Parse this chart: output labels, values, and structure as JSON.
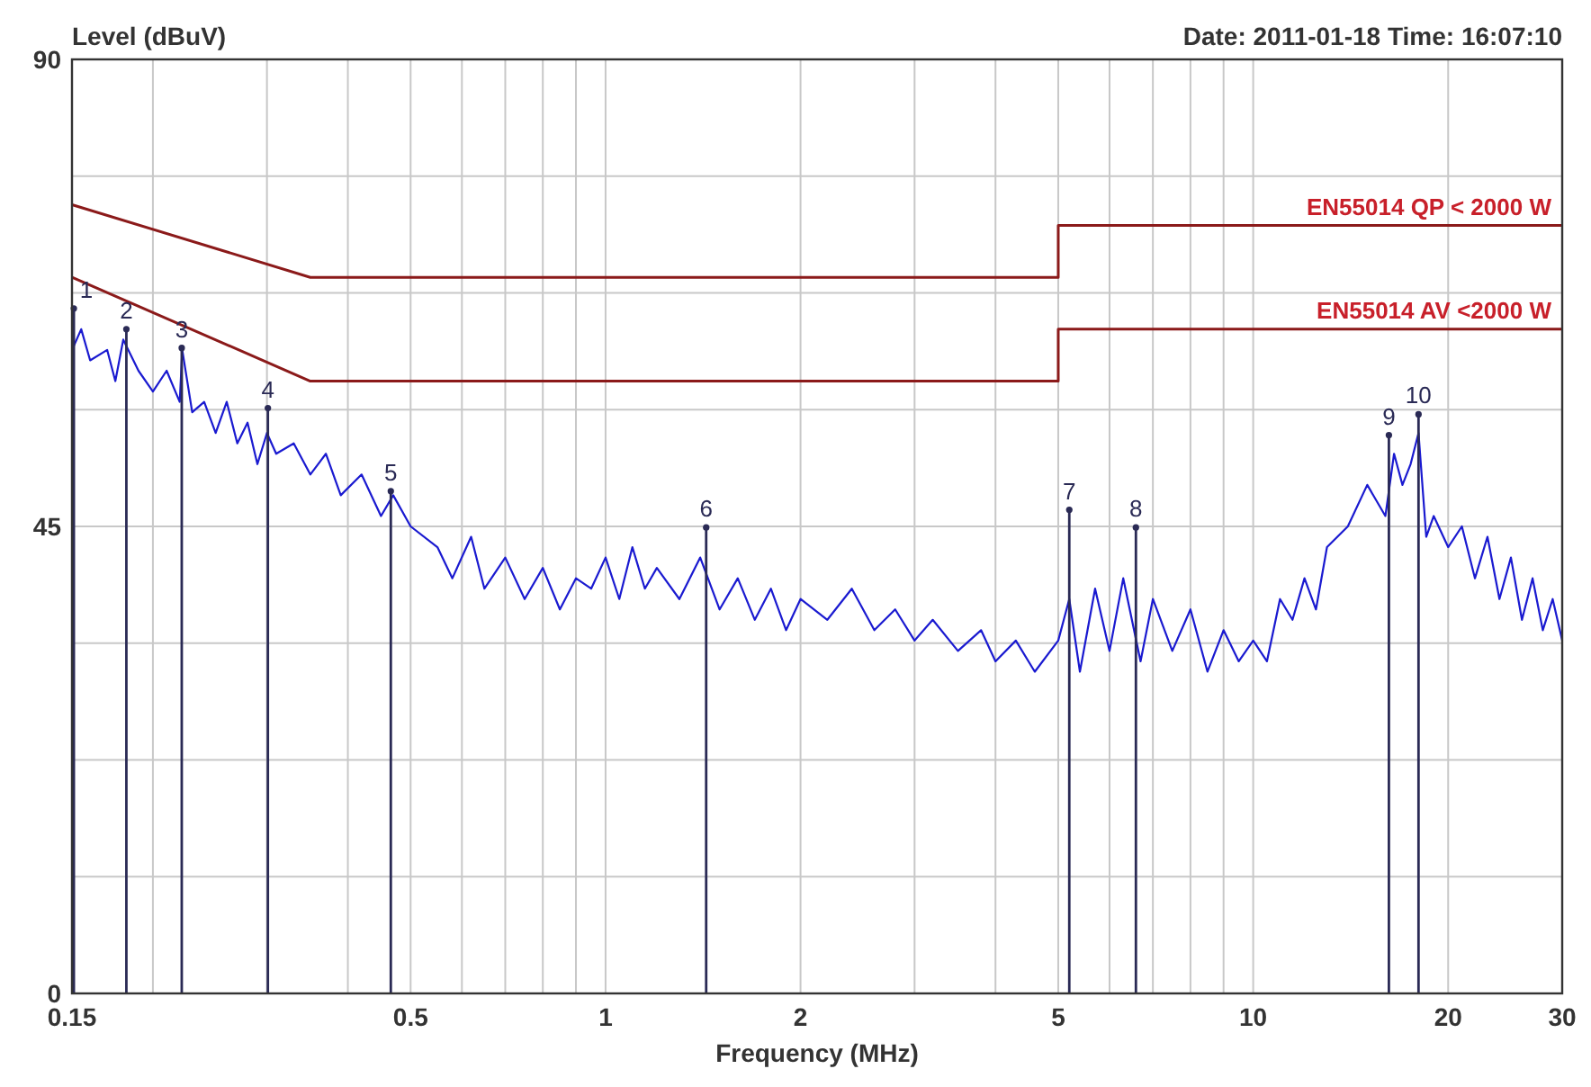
{
  "chart_data": {
    "type": "line",
    "ylabel": "Level (dBuV)",
    "xlabel": "Frequency (MHz)",
    "annotations": [
      "Date: 2011-01-18  Time: 16:07:10",
      {
        "text": "1",
        "x": 0.151,
        "y": 66
      },
      {
        "text": "2",
        "x": 0.182,
        "y": 64
      },
      {
        "text": "3",
        "x": 0.2216,
        "y": 62.2
      },
      {
        "text": "4",
        "x": 0.301,
        "y": 56.4
      },
      {
        "text": "5",
        "x": 0.466,
        "y": 48.4
      },
      {
        "text": "6",
        "x": 1.43,
        "y": 44.9
      },
      {
        "text": "7",
        "x": 5.2,
        "y": 46.6
      },
      {
        "text": "8",
        "x": 6.59,
        "y": 44.9
      },
      {
        "text": "9",
        "x": 16.2,
        "y": 53.8
      },
      {
        "text": "10",
        "x": 18.0,
        "y": 55.8
      }
    ],
    "log": "x",
    "grid": true,
    "legend": false,
    "line_style": "solid",
    "xlim": [
      0.15,
      30
    ],
    "xticks": [
      0.15,
      {
        "value": 0.2,
        "label": null
      },
      {
        "value": 0.3,
        "label": null
      },
      {
        "value": 0.4,
        "label": null
      },
      0.5,
      {
        "value": 0.6,
        "label": null
      },
      {
        "value": 0.7,
        "label": null
      },
      {
        "value": 0.8,
        "label": null
      },
      {
        "value": 0.9,
        "label": null
      },
      1,
      2,
      {
        "value": 3,
        "label": null
      },
      {
        "value": 4,
        "label": null
      },
      5,
      {
        "value": 6,
        "label": null
      },
      {
        "value": 7,
        "label": null
      },
      {
        "value": 8,
        "label": null
      },
      {
        "value": 9,
        "label": null
      },
      10,
      20,
      30
    ],
    "ylim": [
      0,
      90
    ],
    "yticks": [
      0,
      {
        "value": 11.25,
        "label": null
      },
      {
        "value": 22.5,
        "label": null
      },
      {
        "value": 33.75,
        "label": null
      },
      45,
      {
        "value": 56.25,
        "label": null
      },
      {
        "value": 67.5,
        "label": null
      },
      {
        "value": 78.75,
        "label": null
      },
      90
    ],
    "series": [
      {
        "color": "#1a1ad0",
        "x": [
          0.15,
          0.155,
          0.16,
          0.17,
          0.175,
          0.18,
          0.19,
          0.2,
          0.21,
          0.22,
          0.222,
          0.23,
          0.24,
          0.25,
          0.26,
          0.27,
          0.28,
          0.29,
          0.3,
          0.31,
          0.33,
          0.35,
          0.37,
          0.39,
          0.42,
          0.45,
          0.47,
          0.5,
          0.55,
          0.58,
          0.62,
          0.65,
          0.7,
          0.75,
          0.8,
          0.85,
          0.9,
          0.95,
          1.0,
          1.05,
          1.1,
          1.15,
          1.2,
          1.3,
          1.4,
          1.5,
          1.6,
          1.7,
          1.8,
          1.9,
          2.0,
          2.2,
          2.4,
          2.6,
          2.8,
          3.0,
          3.2,
          3.5,
          3.8,
          4.0,
          4.3,
          4.6,
          5.0,
          5.2,
          5.4,
          5.7,
          6.0,
          6.3,
          6.7,
          7.0,
          7.5,
          8.0,
          8.5,
          9.0,
          9.5,
          10,
          10.5,
          11,
          11.5,
          12,
          12.5,
          13,
          14,
          15,
          16,
          16.5,
          17,
          17.5,
          18,
          18.5,
          19,
          20,
          21,
          22,
          23,
          24,
          25,
          26,
          27,
          28,
          29,
          30
        ],
        "values": [
          62,
          64,
          61,
          62,
          59,
          63,
          60,
          58,
          60,
          57,
          62,
          56,
          57,
          54,
          57,
          53,
          55,
          51,
          54,
          52,
          53,
          50,
          52,
          48,
          50,
          46,
          48,
          45,
          43,
          40,
          44,
          39,
          42,
          38,
          41,
          37,
          40,
          39,
          42,
          38,
          43,
          39,
          41,
          38,
          42,
          37,
          40,
          36,
          39,
          35,
          38,
          36,
          39,
          35,
          37,
          34,
          36,
          33,
          35,
          32,
          34,
          31,
          34,
          38,
          31,
          39,
          33,
          40,
          32,
          38,
          33,
          37,
          31,
          35,
          32,
          34,
          32,
          38,
          36,
          40,
          37,
          43,
          45,
          49,
          46,
          52,
          49,
          51,
          54,
          44,
          46,
          43,
          45,
          40,
          44,
          38,
          42,
          36,
          40,
          35,
          38,
          34
        ]
      },
      {
        "type": "line",
        "name": "EN55014  QP < 2000 W",
        "color": "#8b1a1a",
        "x": [
          0.15,
          0.35,
          5,
          5,
          30
        ],
        "values": [
          76,
          69,
          69,
          74,
          74
        ]
      },
      {
        "type": "line",
        "name": "EN55014  AV <2000 W",
        "color": "#8b1a1a",
        "x": [
          0.15,
          0.35,
          5,
          5,
          30
        ],
        "values": [
          69,
          59,
          59,
          64,
          64
        ]
      },
      {
        "type": "lollipop",
        "color": "#2a2a55",
        "x": [
          0.151,
          0.182,
          0.2216,
          0.301,
          0.466,
          1.43,
          5.2,
          6.59,
          16.2,
          18.0
        ],
        "values": [
          66,
          64,
          62.2,
          56.4,
          48.4,
          44.9,
          46.6,
          44.9,
          53.8,
          55.8
        ]
      }
    ]
  }
}
